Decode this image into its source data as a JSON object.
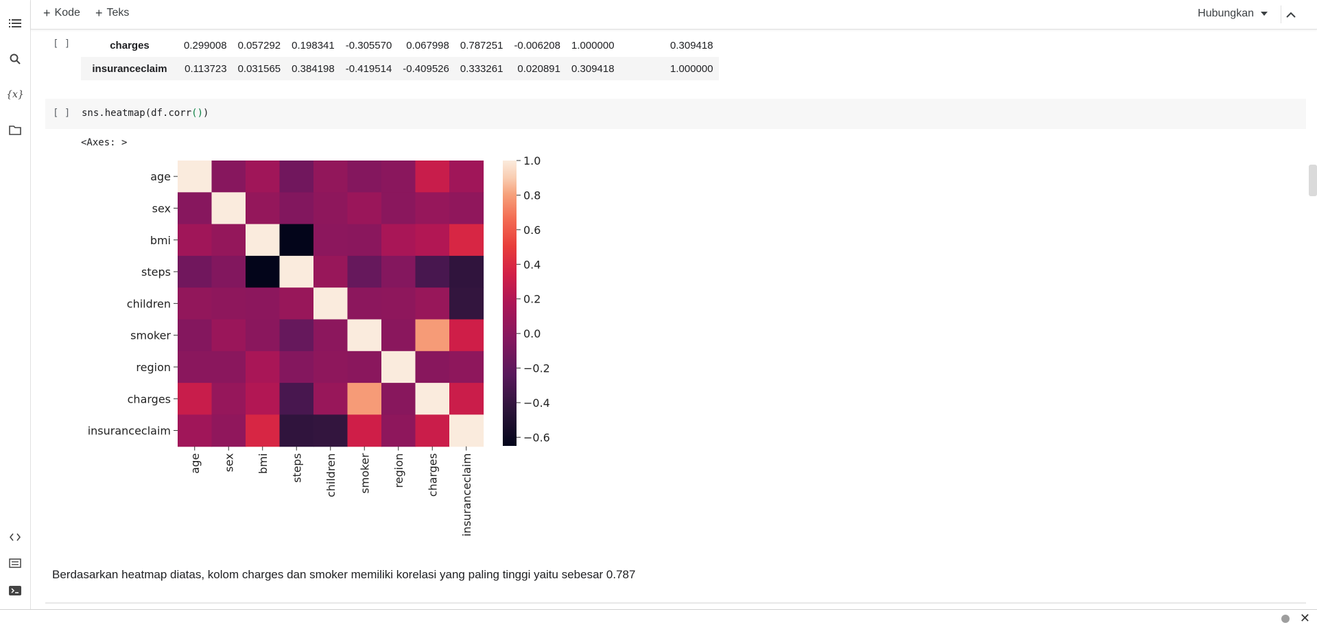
{
  "toolbar": {
    "add_code": "Kode",
    "add_text": "Teks",
    "connect": "Hubungkan"
  },
  "rail_icons": [
    "table-of-contents-icon",
    "search-icon",
    "variables-icon",
    "folder-icon",
    "code-snippets-icon",
    "command-palette-icon",
    "terminal-icon"
  ],
  "corr_table": {
    "rows": [
      {
        "label": "charges",
        "values": [
          "0.299008",
          "0.057292",
          "0.198341",
          "-0.305570",
          "0.067998",
          "0.787251",
          "-0.006208",
          "1.000000",
          "0.309418"
        ]
      },
      {
        "label": "insuranceclaim",
        "values": [
          "0.113723",
          "0.031565",
          "0.384198",
          "-0.419514",
          "-0.409526",
          "0.333261",
          "0.020891",
          "0.309418",
          "1.000000"
        ]
      }
    ]
  },
  "cells": {
    "gutter": "[ ]",
    "code_prefix": "sns.heatmap",
    "code_open": "(",
    "code_inner": "df.corr",
    "code_inner_parens": "()",
    "code_close": ")",
    "output": "<Axes: >",
    "summary": "Berdasarkan heatmap diatas, kolom charges dan smoker memiliki korelasi yang paling tinggi yaitu sebesar 0.787"
  },
  "chart_data": {
    "type": "heatmap",
    "labels": [
      "age",
      "sex",
      "bmi",
      "steps",
      "children",
      "smoker",
      "region",
      "charges",
      "insuranceclaim"
    ],
    "values": [
      [
        1.0,
        -0.02,
        0.11,
        -0.12,
        0.04,
        -0.03,
        0.0,
        0.3,
        0.11
      ],
      [
        -0.02,
        1.0,
        0.05,
        -0.04,
        0.02,
        0.08,
        0.0,
        0.06,
        0.03
      ],
      [
        0.11,
        0.05,
        1.0,
        -0.65,
        0.01,
        0.0,
        0.16,
        0.2,
        0.38
      ],
      [
        -0.12,
        -0.04,
        -0.65,
        1.0,
        0.07,
        -0.17,
        -0.03,
        -0.31,
        -0.42
      ],
      [
        0.04,
        0.02,
        0.01,
        0.07,
        1.0,
        0.01,
        0.02,
        0.07,
        -0.41
      ],
      [
        -0.03,
        0.08,
        0.0,
        -0.17,
        0.01,
        1.0,
        0.0,
        0.79,
        0.33
      ],
      [
        0.0,
        0.0,
        0.16,
        -0.03,
        0.02,
        0.0,
        1.0,
        -0.01,
        0.02
      ],
      [
        0.3,
        0.06,
        0.2,
        -0.31,
        0.07,
        0.79,
        -0.01,
        1.0,
        0.31
      ],
      [
        0.11,
        0.03,
        0.38,
        -0.42,
        -0.41,
        0.33,
        0.02,
        0.31,
        1.0
      ]
    ],
    "vmin": -0.65,
    "vmax": 1.0,
    "colorbar_ticks": [
      1.0,
      0.8,
      0.6,
      0.4,
      0.2,
      0.0,
      -0.2,
      -0.4,
      -0.6
    ],
    "colorbar_tick_labels": [
      "1.0",
      "0.8",
      "0.6",
      "0.4",
      "0.2",
      "0.0",
      "−0.2",
      "−0.4",
      "−0.6"
    ],
    "colormap": "rocket",
    "title": "",
    "xlabel": "",
    "ylabel": ""
  }
}
